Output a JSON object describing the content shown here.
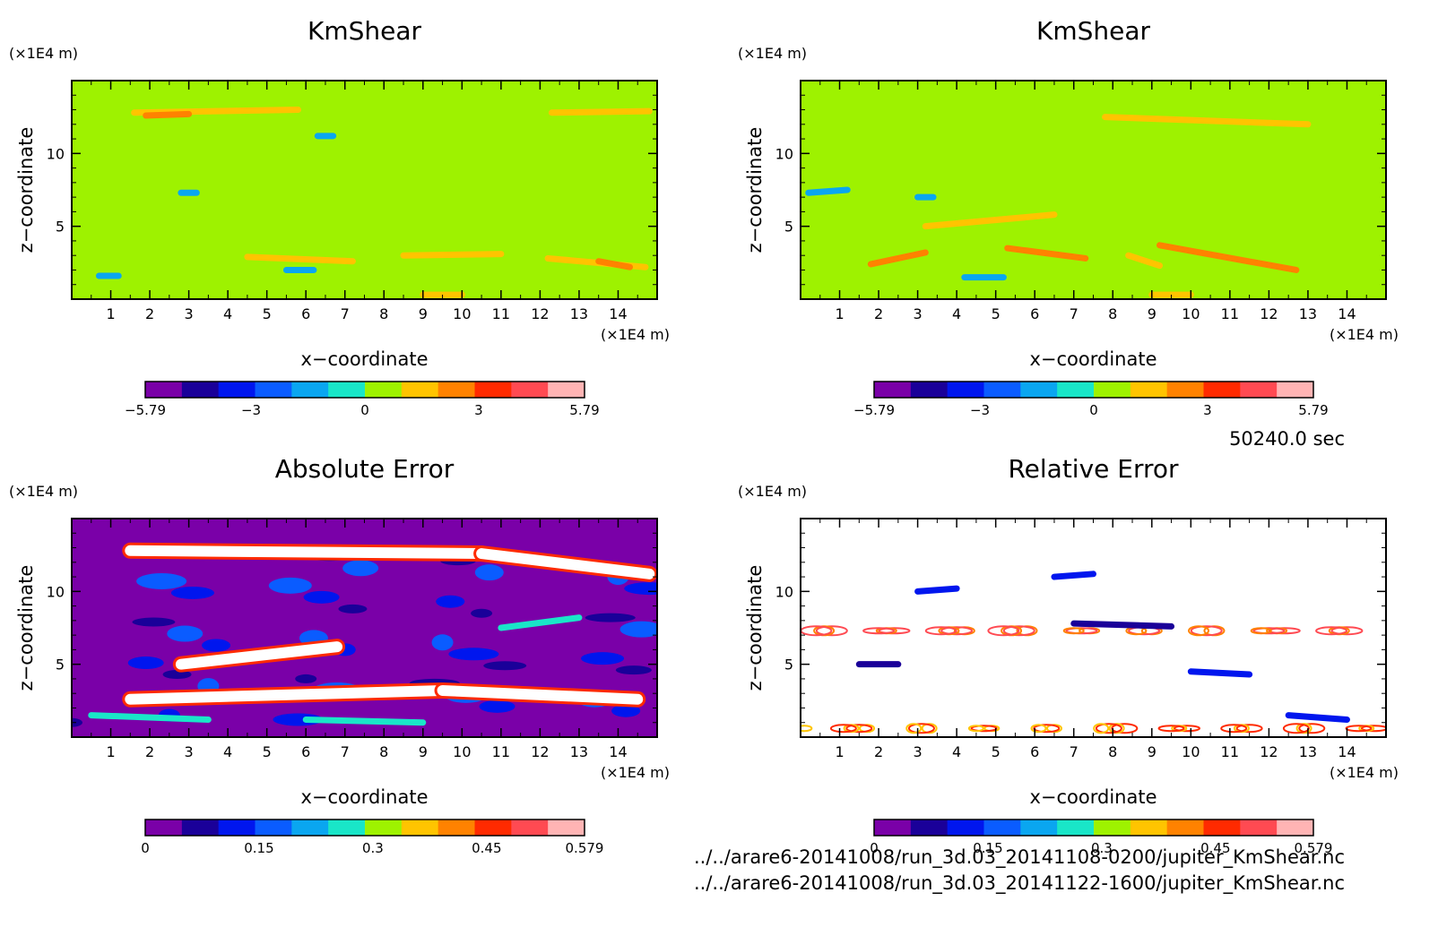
{
  "info": {
    "time_label": "50240.0 sec",
    "file_lines": [
      "../../arare6-20141008/run_3d.03_20141108-0200/jupiter_KmShear.nc",
      "../../arare6-20141008/run_3d.03_20141122-1600/jupiter_KmShear.nc"
    ]
  },
  "colors": {
    "levels": [
      "#7a00a8",
      "#1a0099",
      "#0016ee",
      "#0a5cff",
      "#0aa6f0",
      "#19e6c8",
      "#9ef200",
      "#ffc400",
      "#ff8200",
      "#ff2a00",
      "#ff4a52",
      "#ffb4b4"
    ],
    "background": "#ffffff"
  },
  "chart_data": [
    {
      "type": "heatmap",
      "title": "KmShear",
      "xlabel": "x−coordinate",
      "ylabel": "z−coordinate",
      "x_unit": "(×1E4 m)",
      "y_unit": "(×1E4 m)",
      "xlim": [
        0,
        15
      ],
      "ylim": [
        0,
        15
      ],
      "x_ticks": [
        "1",
        "2",
        "3",
        "4",
        "5",
        "6",
        "7",
        "8",
        "9",
        "10",
        "11",
        "12",
        "13",
        "14"
      ],
      "y_ticks": [
        "5",
        "10"
      ],
      "background_value": 0.5,
      "colorbar": {
        "range": [
          -5.79,
          5.79
        ],
        "tick_labels": [
          "−5.79",
          "−3",
          "0",
          "3",
          "5.79"
        ]
      },
      "features": [
        {
          "x": [
            1.6,
            5.8
          ],
          "z": [
            12.8,
            13.0
          ],
          "level": 8
        },
        {
          "x": [
            12.3,
            14.8
          ],
          "z": [
            12.8,
            12.9
          ],
          "level": 8
        },
        {
          "x": [
            1.9,
            3.0
          ],
          "z": [
            12.6,
            12.7
          ],
          "level": 9
        },
        {
          "x": [
            4.5,
            7.2
          ],
          "z": [
            2.9,
            2.6
          ],
          "level": 8
        },
        {
          "x": [
            8.5,
            11.0
          ],
          "z": [
            3.0,
            3.1
          ],
          "level": 8
        },
        {
          "x": [
            12.2,
            14.7
          ],
          "z": [
            2.8,
            2.2
          ],
          "level": 8
        },
        {
          "x": [
            13.5,
            14.3
          ],
          "z": [
            2.6,
            2.2
          ],
          "level": 9
        },
        {
          "x": [
            0.7,
            1.2
          ],
          "z": [
            1.6,
            1.6
          ],
          "level": 5
        },
        {
          "x": [
            5.5,
            6.2
          ],
          "z": [
            2.0,
            2.0
          ],
          "level": 5
        },
        {
          "x": [
            9.0,
            10.0
          ],
          "z": [
            0.3,
            0.3
          ],
          "level": 8
        },
        {
          "x": [
            2.8,
            3.2
          ],
          "z": [
            7.3,
            7.3
          ],
          "level": 5
        },
        {
          "x": [
            6.3,
            6.7
          ],
          "z": [
            11.2,
            11.2
          ],
          "level": 5
        }
      ]
    },
    {
      "type": "heatmap",
      "title": "KmShear",
      "xlabel": "x−coordinate",
      "ylabel": "z−coordinate",
      "x_unit": "(×1E4 m)",
      "y_unit": "(×1E4 m)",
      "xlim": [
        0,
        15
      ],
      "ylim": [
        0,
        15
      ],
      "x_ticks": [
        "1",
        "2",
        "3",
        "4",
        "5",
        "6",
        "7",
        "8",
        "9",
        "10",
        "11",
        "12",
        "13",
        "14"
      ],
      "y_ticks": [
        "5",
        "10"
      ],
      "background_value": 0.5,
      "colorbar": {
        "range": [
          -5.79,
          5.79
        ],
        "tick_labels": [
          "−5.79",
          "−3",
          "0",
          "3",
          "5.79"
        ]
      },
      "features": [
        {
          "x": [
            7.8,
            13.0
          ],
          "z": [
            12.5,
            12.0
          ],
          "level": 8
        },
        {
          "x": [
            1.8,
            3.2
          ],
          "z": [
            2.4,
            3.2
          ],
          "level": 9
        },
        {
          "x": [
            3.2,
            6.5
          ],
          "z": [
            5.0,
            5.8
          ],
          "level": 8
        },
        {
          "x": [
            5.3,
            7.3
          ],
          "z": [
            3.5,
            2.8
          ],
          "level": 9
        },
        {
          "x": [
            9.2,
            12.7
          ],
          "z": [
            3.7,
            2.0
          ],
          "level": 9
        },
        {
          "x": [
            8.4,
            9.2
          ],
          "z": [
            3.0,
            2.3
          ],
          "level": 8
        },
        {
          "x": [
            0.2,
            1.2
          ],
          "z": [
            7.3,
            7.5
          ],
          "level": 5
        },
        {
          "x": [
            4.2,
            5.2
          ],
          "z": [
            1.5,
            1.5
          ],
          "level": 5
        },
        {
          "x": [
            3.0,
            3.4
          ],
          "z": [
            7.0,
            7.0
          ],
          "level": 5
        },
        {
          "x": [
            9.0,
            10.0
          ],
          "z": [
            0.3,
            0.3
          ],
          "level": 8
        }
      ]
    },
    {
      "type": "heatmap",
      "title": "Absolute Error",
      "xlabel": "x−coordinate",
      "ylabel": "z−coordinate",
      "x_unit": "(×1E4 m)",
      "y_unit": "(×1E4 m)",
      "xlim": [
        0,
        15
      ],
      "ylim": [
        0,
        15
      ],
      "x_ticks": [
        "1",
        "2",
        "3",
        "4",
        "5",
        "6",
        "7",
        "8",
        "9",
        "10",
        "11",
        "12",
        "13",
        "14"
      ],
      "y_ticks": [
        "5",
        "10"
      ],
      "background_value": 0,
      "colorbar": {
        "range": [
          0,
          0.579
        ],
        "tick_labels": [
          "0",
          "0.15",
          "0.3",
          "0.45",
          "0.579"
        ]
      },
      "features": [
        {
          "x": [
            1.5,
            10.5
          ],
          "z": [
            12.8,
            12.6
          ],
          "level": 12
        },
        {
          "x": [
            10.5,
            14.8
          ],
          "z": [
            12.6,
            11.2
          ],
          "level": 12
        },
        {
          "x": [
            2.8,
            6.8
          ],
          "z": [
            5.0,
            6.2
          ],
          "level": 12
        },
        {
          "x": [
            1.5,
            9.5
          ],
          "z": [
            2.6,
            3.2
          ],
          "level": 12
        },
        {
          "x": [
            9.5,
            14.5
          ],
          "z": [
            3.2,
            2.6
          ],
          "level": 12
        },
        {
          "x": [
            11.0,
            13.0
          ],
          "z": [
            7.5,
            8.2
          ],
          "level": 6
        },
        {
          "x": [
            0.5,
            3.5
          ],
          "z": [
            1.5,
            1.2
          ],
          "level": 6
        },
        {
          "x": [
            6.0,
            9.0
          ],
          "z": [
            1.2,
            1.0
          ],
          "level": 6
        }
      ]
    },
    {
      "type": "heatmap",
      "title": "Relative Error",
      "xlabel": "x−coordinate",
      "ylabel": "z−coordinate",
      "x_unit": "(×1E4 m)",
      "y_unit": "(×1E4 m)",
      "xlim": [
        0,
        15
      ],
      "ylim": [
        0,
        15
      ],
      "x_ticks": [
        "1",
        "2",
        "3",
        "4",
        "5",
        "6",
        "7",
        "8",
        "9",
        "10",
        "11",
        "12",
        "13",
        "14"
      ],
      "y_ticks": [
        "5",
        "10"
      ],
      "background_value": null,
      "colorbar": {
        "range": [
          0,
          0.579
        ],
        "tick_labels": [
          "0",
          "0.15",
          "0.3",
          "0.45",
          "0.579"
        ]
      },
      "features": [
        {
          "x": [
            7.0,
            9.5
          ],
          "z": [
            7.8,
            7.6
          ],
          "level": 2
        },
        {
          "x": [
            3.0,
            4.0
          ],
          "z": [
            10.0,
            10.2
          ],
          "level": 3
        },
        {
          "x": [
            10.0,
            11.5
          ],
          "z": [
            4.5,
            4.3
          ],
          "level": 3
        },
        {
          "x": [
            12.5,
            14.0
          ],
          "z": [
            1.5,
            1.2
          ],
          "level": 3
        },
        {
          "x": [
            1.5,
            2.5
          ],
          "z": [
            5.0,
            5.0
          ],
          "level": 2
        },
        {
          "x": [
            6.5,
            7.5
          ],
          "z": [
            11.0,
            11.2
          ],
          "level": 3
        }
      ]
    }
  ]
}
